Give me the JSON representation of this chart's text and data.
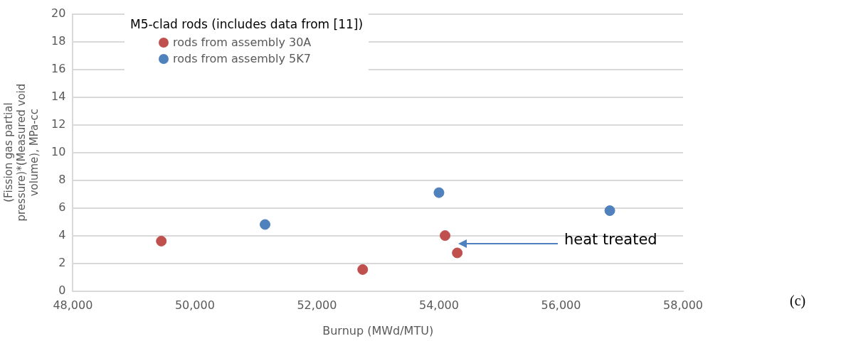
{
  "chart_data": {
    "type": "scatter",
    "xlabel": "Burnup (MWd/MTU)",
    "ylabel": "(Fission gas partial pressure)*(Measured void volume), MPa-cc",
    "legend_title": "M5-clad rods (includes data from [11])",
    "series": [
      {
        "name": "rods from assembly 30A",
        "color": "#c0504d",
        "x": [
          49450,
          52750,
          54100,
          54300
        ],
        "values": [
          3.6,
          1.55,
          4.0,
          2.75
        ]
      },
      {
        "name": "rods from assembly 5K7",
        "color": "#4f81bd",
        "x": [
          51150,
          54000,
          56800
        ],
        "values": [
          4.8,
          7.1,
          5.8
        ]
      }
    ],
    "xlim": [
      48000,
      58000
    ],
    "xticks": [
      {
        "value": 48000,
        "label": "48,000"
      },
      {
        "value": 50000,
        "label": "50,000"
      },
      {
        "value": 52000,
        "label": "52,000"
      },
      {
        "value": 54000,
        "label": "54,000"
      },
      {
        "value": 56000,
        "label": "56,000"
      },
      {
        "value": 58000,
        "label": "58,000"
      }
    ],
    "ylim": [
      0,
      20
    ],
    "yticks": [
      0,
      2,
      4,
      6,
      8,
      10,
      12,
      14,
      16,
      18,
      20
    ],
    "grid": "y",
    "legend": "top left",
    "marker": "circle",
    "annotations": [
      "heat treated",
      "(c)"
    ]
  }
}
